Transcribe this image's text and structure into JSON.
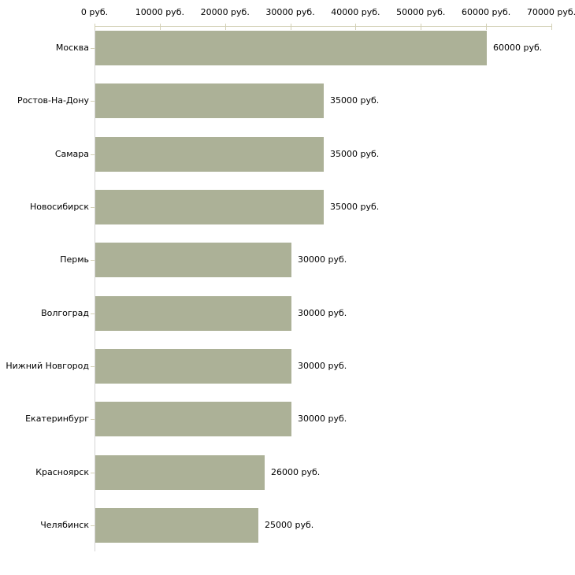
{
  "chart_data": {
    "type": "bar",
    "orientation": "horizontal",
    "title": "",
    "categories": [
      "Москва",
      "Ростов-На-Дону",
      "Самара",
      "Новосибирск",
      "Пермь",
      "Волгоград",
      "Нижний Новгород",
      "Екатеринбург",
      "Красноярск",
      "Челябинск"
    ],
    "values": [
      60000,
      35000,
      35000,
      35000,
      30000,
      30000,
      30000,
      30000,
      26000,
      25000
    ],
    "value_labels": [
      "60000 руб.",
      "35000 руб.",
      "35000 руб.",
      "35000 руб.",
      "30000 руб.",
      "30000 руб.",
      "30000 руб.",
      "30000 руб.",
      "26000 руб.",
      "25000 руб."
    ],
    "xlabel": "",
    "ylabel": "",
    "x_axis": {
      "tick_values": [
        0,
        10000,
        20000,
        30000,
        40000,
        50000,
        60000,
        70000
      ],
      "tick_labels": [
        "0 руб.",
        "10000 руб.",
        "20000 руб.",
        "30000 руб.",
        "40000 руб.",
        "50000 руб.",
        "60000 руб.",
        "70000 руб."
      ],
      "range": [
        0,
        70000
      ],
      "unit": "руб.",
      "position": "top"
    },
    "grid": false,
    "legend": false,
    "colors": {
      "bar": "#acb197",
      "value_axis_line": "#d3d0b5",
      "category_axis_line": "#d5d5d5",
      "tick_mark": "#d3d0b5",
      "text": "#000000",
      "background": "#ffffff"
    }
  }
}
